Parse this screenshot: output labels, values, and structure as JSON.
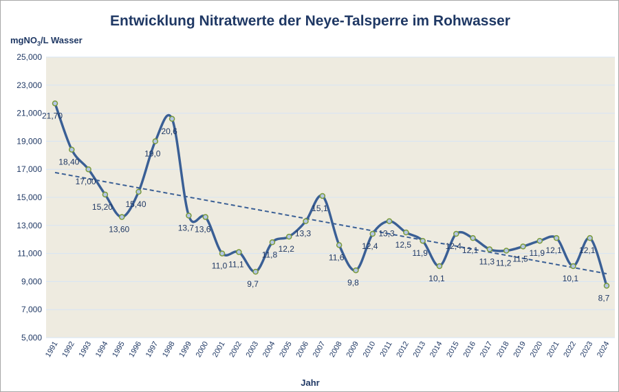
{
  "chart_data": {
    "type": "line",
    "title": "Entwicklung Nitratwerte der Neye-Talsperre im Rohwasser",
    "ylabel_main": "mgNO",
    "ylabel_sub": "3",
    "ylabel_rest": "/L Wasser",
    "xlabel": "Jahr",
    "ylim": [
      5,
      25
    ],
    "yticks": [
      "5,000",
      "7,000",
      "9,000",
      "11,000",
      "13,000",
      "15,000",
      "17,000",
      "19,000",
      "21,000",
      "23,000",
      "25,000"
    ],
    "grid": true,
    "categories": [
      "1991",
      "1992",
      "1993",
      "1994",
      "1995",
      "1996",
      "1997",
      "1998",
      "1999",
      "2000",
      "2001",
      "2002",
      "2003",
      "2004",
      "2005",
      "2006",
      "2007",
      "2008",
      "2009",
      "2010",
      "2011",
      "2012",
      "2013",
      "2014",
      "2015",
      "2016",
      "2017",
      "2018",
      "2019",
      "2020",
      "2021",
      "2022",
      "2023",
      "2024"
    ],
    "values": [
      21.7,
      18.4,
      17.0,
      15.2,
      13.6,
      15.4,
      19.0,
      20.6,
      13.7,
      13.6,
      11.0,
      11.1,
      9.7,
      11.8,
      12.2,
      13.3,
      15.1,
      11.6,
      9.8,
      12.4,
      13.3,
      12.5,
      11.9,
      10.1,
      12.4,
      12.1,
      11.3,
      11.2,
      11.5,
      11.9,
      12.1,
      10.1,
      12.1,
      8.7
    ],
    "data_labels": [
      "21,70",
      "18,40",
      "17,00",
      "15,20",
      "13,60",
      "15,40",
      "19,0",
      "20,6",
      "13,7",
      "13,6",
      "11,0",
      "11,1",
      "9,7",
      "11,8",
      "12,2",
      "13,3",
      "15,1",
      "11,6",
      "9,8",
      "12,4",
      "13,3",
      "12,5",
      "11,9",
      "10,1",
      "12,4",
      "12,1",
      "11,3",
      "11,2",
      "11,5",
      "11,9",
      "12,1",
      "10,1",
      "12,1",
      "8,7"
    ],
    "trendline": {
      "type": "linear",
      "style": "dashed",
      "start": 16.77,
      "end": 9.56
    },
    "colors": {
      "line": "#3a5f95",
      "marker_fill": "#b4c7e7",
      "marker_edge": "#7a9a3a",
      "plot_bg": "#eeebe0",
      "grid": "#d6e4f5",
      "text": "#1f3864"
    }
  }
}
